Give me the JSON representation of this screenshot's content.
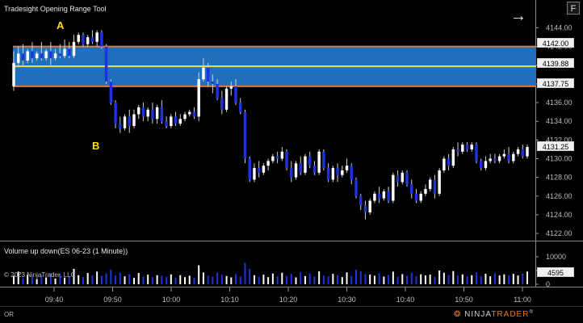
{
  "top_panel": {
    "title": "Tradesight Opening Range Tool",
    "f_button": "F",
    "markers": {
      "a": "A",
      "b": "B"
    }
  },
  "opening_range": {
    "high": 4142.0,
    "mid": 4139.88,
    "low": 4137.75,
    "high_label": "4142.00",
    "mid_label": "4139.88",
    "low_label": "4137.75",
    "fill_color": "#1f6fbd",
    "boundary_color": "#e07a3c",
    "mid_color": "#f0e23c"
  },
  "last_price": {
    "value": 4131.25,
    "label": "4131.25"
  },
  "price_axis": {
    "ticks": [
      "4144.00",
      "4142.00",
      "4140.00",
      "4138.00",
      "4136.00",
      "4134.00",
      "4132.00",
      "4130.00",
      "4128.00",
      "4126.00",
      "4124.00",
      "4122.00"
    ]
  },
  "volume_panel": {
    "title": "Volume up down(ES 06-23 (1 Minute))",
    "copyright": "© 2023 NinjaTrader, LLC",
    "ticks": [
      "10000",
      "5000",
      "0"
    ],
    "last_label": "4595"
  },
  "time_axis": {
    "labels": [
      "09:40",
      "09:50",
      "10:00",
      "10:10",
      "10:20",
      "10:30",
      "10:40",
      "10:50",
      "11:00"
    ]
  },
  "footer": {
    "indicator": "OR",
    "brand_prefix": "NINJA",
    "brand_suffix": "TRADER",
    "brand_mark": "®"
  },
  "colors": {
    "up_candle": "#ffffff",
    "down_candle": "#1e33e0",
    "background": "#000000"
  },
  "chart_data": {
    "type": "candlestick",
    "symbol": "ES 06-23",
    "interval": "1 Minute",
    "ylim": [
      4121.4,
      4145.6
    ],
    "x_first_time": "09:32",
    "x_last_time": "11:02",
    "candles": [
      {
        "o": 4137.75,
        "h": 4141.5,
        "c": 4140.25,
        "l": 4137.25
      },
      {
        "o": 4140.25,
        "h": 4142.0,
        "c": 4141.25,
        "l": 4140.0
      },
      {
        "o": 4141.25,
        "h": 4142.25,
        "c": 4140.5,
        "l": 4140.0
      },
      {
        "o": 4140.5,
        "h": 4141.75,
        "c": 4141.5,
        "l": 4140.25
      },
      {
        "o": 4141.5,
        "h": 4142.5,
        "c": 4140.75,
        "l": 4140.25
      },
      {
        "o": 4140.75,
        "h": 4141.5,
        "c": 4141.25,
        "l": 4140.5
      },
      {
        "o": 4141.25,
        "h": 4142.5,
        "c": 4140.75,
        "l": 4140.5
      },
      {
        "o": 4140.75,
        "h": 4141.75,
        "c": 4141.5,
        "l": 4140.5
      },
      {
        "o": 4141.5,
        "h": 4142.5,
        "c": 4140.75,
        "l": 4140.0
      },
      {
        "o": 4140.75,
        "h": 4141.75,
        "c": 4141.25,
        "l": 4140.5
      },
      {
        "o": 4141.25,
        "h": 4142.25,
        "c": 4141.0,
        "l": 4140.75
      },
      {
        "o": 4141.0,
        "h": 4142.75,
        "c": 4141.75,
        "l": 4140.75
      },
      {
        "o": 4141.75,
        "h": 4142.5,
        "c": 4141.0,
        "l": 4140.75
      },
      {
        "o": 4141.0,
        "h": 4143.25,
        "c": 4142.5,
        "l": 4140.75
      },
      {
        "o": 4142.5,
        "h": 4143.5,
        "c": 4143.25,
        "l": 4142.25
      },
      {
        "o": 4143.25,
        "h": 4143.5,
        "c": 4142.25,
        "l": 4142.0
      },
      {
        "o": 4142.25,
        "h": 4143.25,
        "c": 4143.0,
        "l": 4142.0
      },
      {
        "o": 4143.0,
        "h": 4143.75,
        "c": 4142.5,
        "l": 4142.25
      },
      {
        "o": 4142.5,
        "h": 4143.75,
        "c": 4143.5,
        "l": 4142.0
      },
      {
        "o": 4143.5,
        "h": 4143.75,
        "c": 4142.0,
        "l": 4141.75
      },
      {
        "o": 4142.0,
        "h": 4142.25,
        "c": 4138.25,
        "l": 4138.0
      },
      {
        "o": 4138.25,
        "h": 4138.5,
        "c": 4136.0,
        "l": 4135.75
      },
      {
        "o": 4136.0,
        "h": 4136.25,
        "c": 4133.75,
        "l": 4133.25
      },
      {
        "o": 4133.75,
        "h": 4134.5,
        "c": 4133.25,
        "l": 4132.75
      },
      {
        "o": 4133.25,
        "h": 4134.75,
        "c": 4134.5,
        "l": 4133.0
      },
      {
        "o": 4134.5,
        "h": 4135.25,
        "c": 4133.5,
        "l": 4132.75
      },
      {
        "o": 4133.5,
        "h": 4135.25,
        "c": 4134.75,
        "l": 4133.25
      },
      {
        "o": 4134.75,
        "h": 4135.75,
        "c": 4135.5,
        "l": 4134.25
      },
      {
        "o": 4135.5,
        "h": 4136.0,
        "c": 4134.5,
        "l": 4134.0
      },
      {
        "o": 4134.5,
        "h": 4135.5,
        "c": 4135.25,
        "l": 4134.0
      },
      {
        "o": 4135.25,
        "h": 4136.0,
        "c": 4134.25,
        "l": 4133.75
      },
      {
        "o": 4134.25,
        "h": 4135.75,
        "c": 4135.5,
        "l": 4133.75
      },
      {
        "o": 4135.5,
        "h": 4136.25,
        "c": 4134.0,
        "l": 4133.75
      },
      {
        "o": 4134.0,
        "h": 4134.5,
        "c": 4133.5,
        "l": 4133.25
      },
      {
        "o": 4133.5,
        "h": 4134.75,
        "c": 4134.5,
        "l": 4133.25
      },
      {
        "o": 4134.5,
        "h": 4135.0,
        "c": 4133.75,
        "l": 4133.5
      },
      {
        "o": 4133.75,
        "h": 4134.75,
        "c": 4134.25,
        "l": 4133.5
      },
      {
        "o": 4134.25,
        "h": 4135.0,
        "c": 4134.75,
        "l": 4134.0
      },
      {
        "o": 4134.75,
        "h": 4135.25,
        "c": 4135.0,
        "l": 4134.5
      },
      {
        "o": 4135.0,
        "h": 4135.5,
        "c": 4134.5,
        "l": 4134.25
      },
      {
        "o": 4134.5,
        "h": 4139.25,
        "c": 4138.5,
        "l": 4134.0
      },
      {
        "o": 4138.5,
        "h": 4140.75,
        "c": 4139.75,
        "l": 4138.25
      },
      {
        "o": 4139.75,
        "h": 4140.25,
        "c": 4138.25,
        "l": 4137.75
      },
      {
        "o": 4138.25,
        "h": 4139.0,
        "c": 4138.0,
        "l": 4137.0
      },
      {
        "o": 4138.0,
        "h": 4138.5,
        "c": 4136.5,
        "l": 4136.25
      },
      {
        "o": 4136.5,
        "h": 4137.25,
        "c": 4135.25,
        "l": 4134.75
      },
      {
        "o": 4135.25,
        "h": 4137.75,
        "c": 4137.5,
        "l": 4135.0
      },
      {
        "o": 4137.5,
        "h": 4138.25,
        "c": 4137.75,
        "l": 4136.75
      },
      {
        "o": 4137.75,
        "h": 4138.5,
        "c": 4136.0,
        "l": 4135.75
      },
      {
        "o": 4136.0,
        "h": 4136.5,
        "c": 4135.0,
        "l": 4134.75
      },
      {
        "o": 4135.0,
        "h": 4135.25,
        "c": 4130.0,
        "l": 4129.5
      },
      {
        "o": 4130.0,
        "h": 4130.25,
        "c": 4127.75,
        "l": 4127.5
      },
      {
        "o": 4127.75,
        "h": 4129.5,
        "c": 4129.0,
        "l": 4127.5
      },
      {
        "o": 4129.0,
        "h": 4129.75,
        "c": 4128.5,
        "l": 4128.0
      },
      {
        "o": 4128.5,
        "h": 4129.5,
        "c": 4129.25,
        "l": 4128.25
      },
      {
        "o": 4129.25,
        "h": 4130.0,
        "c": 4129.75,
        "l": 4128.75
      },
      {
        "o": 4129.75,
        "h": 4130.5,
        "c": 4130.25,
        "l": 4129.5
      },
      {
        "o": 4130.25,
        "h": 4130.75,
        "c": 4130.0,
        "l": 4129.5
      },
      {
        "o": 4130.0,
        "h": 4131.25,
        "c": 4130.75,
        "l": 4129.75
      },
      {
        "o": 4130.75,
        "h": 4131.0,
        "c": 4129.0,
        "l": 4128.75
      },
      {
        "o": 4129.0,
        "h": 4129.75,
        "c": 4128.0,
        "l": 4127.5
      },
      {
        "o": 4128.0,
        "h": 4129.75,
        "c": 4129.5,
        "l": 4127.75
      },
      {
        "o": 4129.5,
        "h": 4130.25,
        "c": 4128.5,
        "l": 4128.25
      },
      {
        "o": 4128.5,
        "h": 4130.5,
        "c": 4130.25,
        "l": 4128.25
      },
      {
        "o": 4130.25,
        "h": 4130.75,
        "c": 4129.25,
        "l": 4129.0
      },
      {
        "o": 4129.25,
        "h": 4129.75,
        "c": 4128.5,
        "l": 4128.25
      },
      {
        "o": 4128.5,
        "h": 4131.0,
        "c": 4130.75,
        "l": 4128.25
      },
      {
        "o": 4130.75,
        "h": 4131.0,
        "c": 4129.0,
        "l": 4128.75
      },
      {
        "o": 4129.0,
        "h": 4129.5,
        "c": 4127.75,
        "l": 4127.5
      },
      {
        "o": 4127.75,
        "h": 4129.25,
        "c": 4129.0,
        "l": 4127.5
      },
      {
        "o": 4129.0,
        "h": 4129.5,
        "c": 4128.25,
        "l": 4127.5
      },
      {
        "o": 4128.25,
        "h": 4129.25,
        "c": 4128.75,
        "l": 4128.0
      },
      {
        "o": 4128.75,
        "h": 4130.0,
        "c": 4129.25,
        "l": 4128.5
      },
      {
        "o": 4129.25,
        "h": 4129.5,
        "c": 4127.75,
        "l": 4127.25
      },
      {
        "o": 4127.75,
        "h": 4128.0,
        "c": 4126.0,
        "l": 4125.75
      },
      {
        "o": 4126.0,
        "h": 4126.25,
        "c": 4125.0,
        "l": 4124.5
      },
      {
        "o": 4125.0,
        "h": 4125.5,
        "c": 4124.25,
        "l": 4123.5
      },
      {
        "o": 4124.25,
        "h": 4125.75,
        "c": 4125.5,
        "l": 4124.0
      },
      {
        "o": 4125.5,
        "h": 4126.5,
        "c": 4126.25,
        "l": 4125.25
      },
      {
        "o": 4126.25,
        "h": 4127.0,
        "c": 4125.75,
        "l": 4125.25
      },
      {
        "o": 4125.75,
        "h": 4126.75,
        "c": 4126.5,
        "l": 4125.5
      },
      {
        "o": 4126.5,
        "h": 4127.0,
        "c": 4125.5,
        "l": 4125.25
      },
      {
        "o": 4125.5,
        "h": 4128.5,
        "c": 4128.25,
        "l": 4125.25
      },
      {
        "o": 4128.25,
        "h": 4128.75,
        "c": 4127.5,
        "l": 4127.0
      },
      {
        "o": 4127.5,
        "h": 4128.75,
        "c": 4128.5,
        "l": 4127.25
      },
      {
        "o": 4128.5,
        "h": 4128.75,
        "c": 4127.25,
        "l": 4127.0
      },
      {
        "o": 4127.25,
        "h": 4127.75,
        "c": 4126.25,
        "l": 4125.75
      },
      {
        "o": 4126.25,
        "h": 4126.75,
        "c": 4125.5,
        "l": 4125.25
      },
      {
        "o": 4125.5,
        "h": 4126.5,
        "c": 4126.25,
        "l": 4125.25
      },
      {
        "o": 4126.25,
        "h": 4127.25,
        "c": 4126.75,
        "l": 4126.0
      },
      {
        "o": 4126.75,
        "h": 4128.0,
        "c": 4127.75,
        "l": 4126.5
      },
      {
        "o": 4127.75,
        "h": 4128.25,
        "c": 4126.25,
        "l": 4125.75
      },
      {
        "o": 4126.25,
        "h": 4129.0,
        "c": 4128.75,
        "l": 4126.0
      },
      {
        "o": 4128.75,
        "h": 4130.25,
        "c": 4130.0,
        "l": 4128.5
      },
      {
        "o": 4130.0,
        "h": 4130.5,
        "c": 4129.25,
        "l": 4128.75
      },
      {
        "o": 4129.25,
        "h": 4131.25,
        "c": 4131.0,
        "l": 4129.0
      },
      {
        "o": 4131.0,
        "h": 4131.75,
        "c": 4130.75,
        "l": 4130.25
      },
      {
        "o": 4130.75,
        "h": 4131.75,
        "c": 4131.5,
        "l": 4130.5
      },
      {
        "o": 4131.5,
        "h": 4131.75,
        "c": 4131.0,
        "l": 4130.75
      },
      {
        "o": 4131.0,
        "h": 4131.75,
        "c": 4131.5,
        "l": 4130.75
      },
      {
        "o": 4131.5,
        "h": 4131.75,
        "c": 4129.75,
        "l": 4129.5
      },
      {
        "o": 4129.75,
        "h": 4130.0,
        "c": 4129.0,
        "l": 4128.75
      },
      {
        "o": 4129.0,
        "h": 4130.25,
        "c": 4129.75,
        "l": 4128.75
      },
      {
        "o": 4129.75,
        "h": 4130.5,
        "c": 4130.0,
        "l": 4129.5
      },
      {
        "o": 4130.0,
        "h": 4130.5,
        "c": 4129.75,
        "l": 4129.5
      },
      {
        "o": 4129.75,
        "h": 4130.5,
        "c": 4130.25,
        "l": 4129.5
      },
      {
        "o": 4130.25,
        "h": 4131.0,
        "c": 4130.5,
        "l": 4130.0
      },
      {
        "o": 4130.5,
        "h": 4131.25,
        "c": 4129.75,
        "l": 4129.5
      },
      {
        "o": 4129.75,
        "h": 4130.75,
        "c": 4130.5,
        "l": 4129.5
      },
      {
        "o": 4130.5,
        "h": 4131.25,
        "c": 4131.0,
        "l": 4130.25
      },
      {
        "o": 4131.0,
        "h": 4131.5,
        "c": 4130.25,
        "l": 4130.0
      },
      {
        "o": 4130.25,
        "h": 4131.5,
        "c": 4131.25,
        "l": 4130.0
      }
    ],
    "volume": [
      3100,
      4600,
      2200,
      3500,
      2800,
      1900,
      3300,
      2500,
      4100,
      2100,
      3700,
      2400,
      2900,
      5600,
      3300,
      2600,
      4100,
      3300,
      4600,
      3100,
      4000,
      5300,
      3200,
      4200,
      2900,
      3700,
      2300,
      4100,
      2800,
      3500,
      2600,
      3300,
      3100,
      2700,
      3600,
      2400,
      3300,
      2600,
      3100,
      2300,
      6900,
      4300,
      3100,
      2700,
      4200,
      3500,
      3000,
      2500,
      3800,
      2800,
      7800,
      5600,
      3300,
      2700,
      3500,
      2600,
      3900,
      2900,
      4200,
      3000,
      3800,
      2500,
      4400,
      3000,
      4000,
      2800,
      4700,
      3200,
      2900,
      3800,
      3300,
      2600,
      4300,
      3000,
      5300,
      4700,
      3700,
      3500,
      3100,
      4000,
      2800,
      3400,
      4600,
      2800,
      3700,
      3100,
      4200,
      2900,
      3600,
      3200,
      3500,
      2700,
      5000,
      4200,
      3300,
      4800,
      3200,
      3600,
      2900,
      3300,
      4300,
      3000,
      3800,
      2900,
      4000,
      3200,
      3600,
      3300,
      3800,
      3200,
      3900,
      4595
    ],
    "volume_ylim": [
      0,
      10000
    ]
  }
}
